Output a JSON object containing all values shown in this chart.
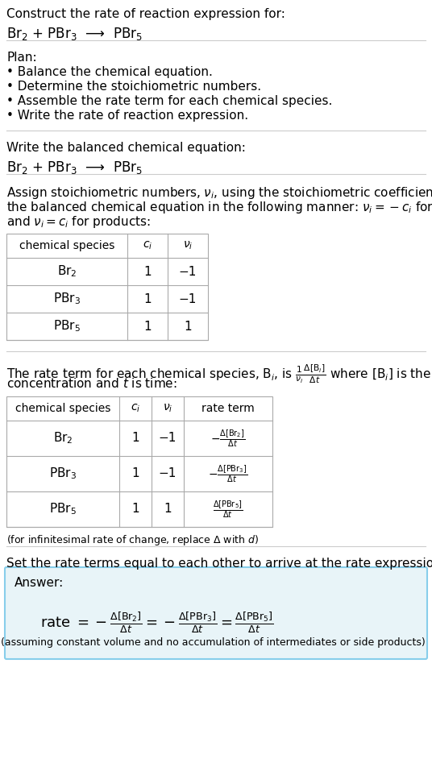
{
  "bg_color": "#ffffff",
  "text_color": "#000000",
  "section_line_color": "#cccccc",
  "answer_box_color": "#e8f4f8",
  "answer_box_border": "#87ceeb",
  "title_line1": "Construct the rate of reaction expression for:",
  "title_equation": "Br$_2$ + PBr$_3$  ⟶  PBr$_5$",
  "plan_header": "Plan:",
  "plan_items": [
    "• Balance the chemical equation.",
    "• Determine the stoichiometric numbers.",
    "• Assemble the rate term for each chemical species.",
    "• Write the rate of reaction expression."
  ],
  "balanced_header": "Write the balanced chemical equation:",
  "balanced_equation": "Br$_2$ + PBr$_3$  ⟶  PBr$_5$",
  "stoich_intro": "Assign stoichiometric numbers, $\\nu_i$, using the stoichiometric coefficients, $c_i$, from\nthe balanced chemical equation in the following manner: $\\nu_i = -c_i$ for reactants\nand $\\nu_i = c_i$ for products:",
  "table1_headers": [
    "chemical species",
    "$c_i$",
    "$\\nu_i$"
  ],
  "table1_rows": [
    [
      "Br$_2$",
      "1",
      "−1"
    ],
    [
      "PBr$_3$",
      "1",
      "−1"
    ],
    [
      "PBr$_5$",
      "1",
      "1"
    ]
  ],
  "rate_intro": "The rate term for each chemical species, B$_i$, is $\\frac{1}{\\nu_i}\\frac{\\Delta[\\mathrm{B}_i]}{\\Delta t}$ where [B$_i$] is the amount\nconcentration and $t$ is time:",
  "table2_headers": [
    "chemical species",
    "$c_i$",
    "$\\nu_i$",
    "rate term"
  ],
  "table2_rows": [
    [
      "Br$_2$",
      "1",
      "−1",
      "$-\\frac{\\Delta[\\mathrm{Br}_2]}{\\Delta t}$"
    ],
    [
      "PBr$_3$",
      "1",
      "−1",
      "$-\\frac{\\Delta[\\mathrm{PBr}_3]}{\\Delta t}$"
    ],
    [
      "PBr$_5$",
      "1",
      "1",
      "$\\frac{\\Delta[\\mathrm{PBr}_5]}{\\Delta t}$"
    ]
  ],
  "infinitesimal_note": "(for infinitesimal rate of change, replace Δ with $d$)",
  "set_equal_text": "Set the rate terms equal to each other to arrive at the rate expression:",
  "answer_label": "Answer:",
  "rate_expression": "rate $= -\\frac{\\Delta[\\mathrm{Br}_2]}{\\Delta t} = -\\frac{\\Delta[\\mathrm{PBr}_3]}{\\Delta t} = \\frac{\\Delta[\\mathrm{PBr}_5]}{\\Delta t}$",
  "assumption_note": "(assuming constant volume and no accumulation of intermediates or side products)"
}
